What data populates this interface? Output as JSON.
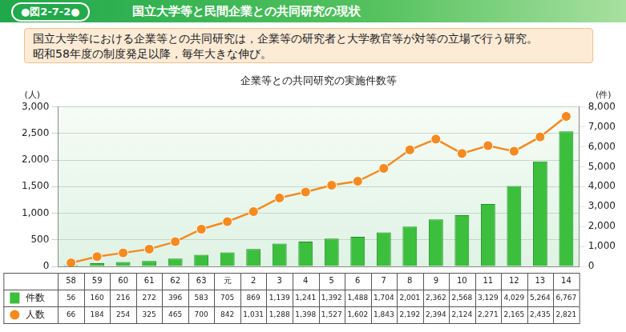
{
  "header": {
    "figure_label": "●図2-7-2●",
    "title": "国立大学等と民間企業との共同研究の現状"
  },
  "summary": [
    "国立大学等における企業等との共同研究は，企業等の研究者と大学教官等が対等の立場で行う研究。",
    "昭和58年度の制度発足以降，毎年大きな伸び。"
  ],
  "chart_data": {
    "type": "bar",
    "title": "企業等との共同研究の実施件数等",
    "ylabel": "(人)",
    "y2label": "(件)",
    "categories": [
      "58",
      "59",
      "60",
      "61",
      "62",
      "63",
      "元",
      "2",
      "3",
      "4",
      "5",
      "6",
      "7",
      "8",
      "9",
      "10",
      "11",
      "12",
      "13",
      "14"
    ],
    "series": [
      {
        "name": "件数",
        "type": "bar",
        "axis": "y2",
        "color": "#3cbf3c",
        "values": [
          56,
          160,
          216,
          272,
          396,
          583,
          705,
          869,
          1139,
          1241,
          1392,
          1488,
          1704,
          2001,
          2362,
          2568,
          3129,
          4029,
          5264,
          6767
        ],
        "value_labels": [
          "56",
          "160",
          "216",
          "272",
          "396",
          "583",
          "705",
          "869",
          "1,139",
          "1,241",
          "1,392",
          "1,488",
          "1,704",
          "2,001",
          "2,362",
          "2,568",
          "3,129",
          "4,029",
          "5,264",
          "6,767"
        ]
      },
      {
        "name": "人数",
        "type": "line",
        "axis": "y",
        "color": "#f58a1f",
        "marker": "circle",
        "line_style": "solid",
        "values": [
          66,
          184,
          254,
          325,
          465,
          700,
          842,
          1031,
          1288,
          1398,
          1527,
          1602,
          1843,
          2192,
          2394,
          2124,
          2271,
          2165,
          2435,
          2821
        ],
        "value_labels": [
          "66",
          "184",
          "254",
          "325",
          "465",
          "700",
          "842",
          "1,031",
          "1,288",
          "1,398",
          "1,527",
          "1,602",
          "1,843",
          "2,192",
          "2,394",
          "2,124",
          "2,271",
          "2,165",
          "2,435",
          "2,821"
        ]
      }
    ],
    "ylim": [
      0,
      3000
    ],
    "yticks": [
      0,
      500,
      {
        "value": 1000,
        "label": "1,000"
      },
      {
        "value": 1500,
        "label": "1,500"
      },
      {
        "value": 2000,
        "label": "2,000"
      },
      {
        "value": 2500,
        "label": "2,500"
      },
      {
        "value": 3000,
        "label": "3,000"
      }
    ],
    "y2lim": [
      0,
      8000
    ],
    "y2ticks": [
      0,
      {
        "value": 1000,
        "label": "1,000"
      },
      {
        "value": 2000,
        "label": "2,000"
      },
      {
        "value": 3000,
        "label": "3,000"
      },
      {
        "value": 4000,
        "label": "4,000"
      },
      {
        "value": 5000,
        "label": "5,000"
      },
      {
        "value": 6000,
        "label": "6,000"
      },
      {
        "value": 7000,
        "label": "7,000"
      },
      {
        "value": 8000,
        "label": "8,000"
      }
    ],
    "grid": true
  }
}
